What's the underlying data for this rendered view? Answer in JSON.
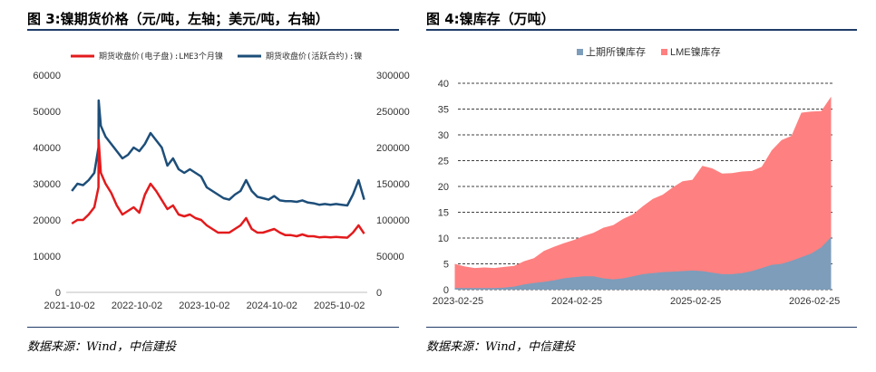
{
  "left": {
    "figure_title": "图 3:镍期货价格（元/吨，左轴；美元/吨，右轴）",
    "source": "数据来源：Wind，中信建投"
  },
  "right": {
    "figure_title": "图 4:镍库存（万吨）",
    "source": "数据来源：Wind，中信建投"
  },
  "colors": {
    "red": "#e31a1c",
    "navy": "#1d4e79",
    "pink": "#ff8080",
    "steel": "#7d9dbb",
    "rule": "#1f3c68"
  },
  "chart_data": [
    {
      "type": "line",
      "title": "",
      "x_tick_labels": [
        "2021-10-02",
        "2022-10-02",
        "2023-10-02",
        "2024-10-02",
        "2025-10-02"
      ],
      "y_left_ticks": [
        "0",
        "10000",
        "20000",
        "30000",
        "40000",
        "50000",
        "60000"
      ],
      "y_right_ticks": [
        "0",
        "50000",
        "100000",
        "150000",
        "200000",
        "250000",
        "300000"
      ],
      "ylim_left": [
        0,
        60000
      ],
      "ylim_right": [
        0,
        300000
      ],
      "legend_position": "top",
      "series": [
        {
          "name": "期货收盘价(电子盘):LME3个月镍",
          "axis": "left",
          "color": "#e31a1c",
          "x": [
            "2021-10",
            "2021-11",
            "2021-12",
            "2022-01",
            "2022-02",
            "2022-03-07",
            "2022-03-08",
            "2022-03-20",
            "2022-04",
            "2022-05",
            "2022-06",
            "2022-07",
            "2022-08",
            "2022-09",
            "2022-10",
            "2022-11",
            "2022-12",
            "2023-01",
            "2023-02",
            "2023-03",
            "2023-04",
            "2023-05",
            "2023-06",
            "2023-07",
            "2023-08",
            "2023-09",
            "2023-10",
            "2023-11",
            "2023-12",
            "2024-01",
            "2024-02",
            "2024-03",
            "2024-04",
            "2024-05",
            "2024-06",
            "2024-07",
            "2024-08",
            "2024-09",
            "2024-10",
            "2024-11",
            "2024-12",
            "2025-01",
            "2025-02",
            "2025-03",
            "2025-04",
            "2025-05",
            "2025-06",
            "2025-07",
            "2025-08",
            "2025-09",
            "2025-10",
            "2025-11",
            "2025-12",
            "2026-01",
            "2026-02"
          ],
          "values": [
            19000,
            20000,
            20000,
            21500,
            23500,
            29000,
            42000,
            33000,
            30000,
            27500,
            24000,
            21500,
            22500,
            23500,
            22000,
            27000,
            30000,
            28000,
            25500,
            23000,
            24000,
            21500,
            21000,
            21500,
            20500,
            20000,
            18500,
            17500,
            16500,
            16500,
            16500,
            17500,
            18500,
            20500,
            17500,
            16500,
            16500,
            17000,
            17500,
            16500,
            15800,
            15800,
            15500,
            16000,
            15500,
            15500,
            15200,
            15300,
            15200,
            15300,
            15200,
            15100,
            16500,
            18500,
            16200
          ]
        },
        {
          "name": "期货收盘价(活跃合约):镍",
          "axis": "right",
          "color": "#1d4e79",
          "x": [
            "2021-10",
            "2021-11",
            "2021-12",
            "2022-01",
            "2022-02",
            "2022-03-07",
            "2022-03-08",
            "2022-03-20",
            "2022-04",
            "2022-05",
            "2022-06",
            "2022-07",
            "2022-08",
            "2022-09",
            "2022-10",
            "2022-11",
            "2022-12",
            "2023-01",
            "2023-02",
            "2023-03",
            "2023-04",
            "2023-05",
            "2023-06",
            "2023-07",
            "2023-08",
            "2023-09",
            "2023-10",
            "2023-11",
            "2023-12",
            "2024-01",
            "2024-02",
            "2024-03",
            "2024-04",
            "2024-05",
            "2024-06",
            "2024-07",
            "2024-08",
            "2024-09",
            "2024-10",
            "2024-11",
            "2024-12",
            "2025-01",
            "2025-02",
            "2025-03",
            "2025-04",
            "2025-05",
            "2025-06",
            "2025-07",
            "2025-08",
            "2025-09",
            "2025-10",
            "2025-11",
            "2025-12",
            "2026-01",
            "2026-02"
          ],
          "values": [
            140000,
            150000,
            148000,
            155000,
            165000,
            200000,
            265000,
            230000,
            215000,
            205000,
            195000,
            185000,
            190000,
            200000,
            195000,
            205000,
            220000,
            210000,
            200000,
            175000,
            185000,
            170000,
            165000,
            170000,
            165000,
            160000,
            145000,
            140000,
            135000,
            130000,
            128000,
            135000,
            140000,
            155000,
            140000,
            132000,
            130000,
            128000,
            133000,
            127000,
            126000,
            126000,
            125000,
            127000,
            124000,
            123000,
            121000,
            122000,
            121000,
            122000,
            121000,
            120000,
            135000,
            155000,
            128000
          ]
        }
      ]
    },
    {
      "type": "area",
      "title": "",
      "x_tick_labels": [
        "2023-02-25",
        "2024-02-25",
        "2025-02-25",
        "2026-02-25"
      ],
      "y_ticks": [
        "0",
        "5",
        "10",
        "15",
        "20",
        "25",
        "30",
        "35",
        "40"
      ],
      "ylim": [
        0,
        40
      ],
      "stacked": true,
      "legend_position": "top",
      "x": [
        "2023-02",
        "2023-03",
        "2023-04",
        "2023-05",
        "2023-06",
        "2023-07",
        "2023-08",
        "2023-09",
        "2023-10",
        "2023-11",
        "2023-12",
        "2024-01",
        "2024-02",
        "2024-03",
        "2024-04",
        "2024-05",
        "2024-06",
        "2024-07",
        "2024-08",
        "2024-09",
        "2024-10",
        "2024-11",
        "2024-12",
        "2025-01",
        "2025-02",
        "2025-03",
        "2025-04",
        "2025-05",
        "2025-06",
        "2025-07",
        "2025-08",
        "2025-09",
        "2025-10",
        "2025-11",
        "2025-12",
        "2026-01",
        "2026-02",
        "2026-03",
        "2026-04"
      ],
      "series": [
        {
          "name": "上期所镍库存",
          "color": "#7d9dbb",
          "values": [
            0.3,
            0.3,
            0.3,
            0.3,
            0.3,
            0.4,
            0.6,
            1.0,
            1.3,
            1.5,
            1.8,
            2.2,
            2.4,
            2.6,
            2.6,
            2.2,
            2.0,
            2.2,
            2.6,
            3.0,
            3.2,
            3.4,
            3.5,
            3.6,
            3.7,
            3.6,
            3.3,
            3.0,
            3.0,
            3.2,
            3.6,
            4.2,
            4.8,
            5.0,
            5.6,
            6.3,
            7.0,
            8.2,
            10.2
          ]
        },
        {
          "name": "LME镍库存",
          "color": "#ff8080",
          "values": [
            4.7,
            4.2,
            3.9,
            4.0,
            3.9,
            4.0,
            4.0,
            4.5,
            4.8,
            6.0,
            6.5,
            6.8,
            7.2,
            7.8,
            8.4,
            9.8,
            10.5,
            11.5,
            12.0,
            13.2,
            14.4,
            15.0,
            16.3,
            17.4,
            17.6,
            20.4,
            20.2,
            19.5,
            19.6,
            19.7,
            19.4,
            19.6,
            22.2,
            24.0,
            24.2,
            28.0,
            27.5,
            26.4,
            27.2
          ]
        }
      ]
    }
  ]
}
